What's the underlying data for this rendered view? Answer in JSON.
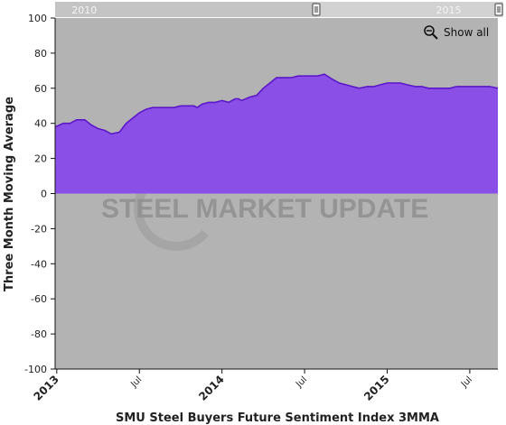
{
  "chart_data": {
    "type": "area",
    "title": "",
    "xlabel": "SMU Steel Buyers Future Sentiment Index 3MMA",
    "ylabel": "Three Month Moving Average",
    "ylim": [
      -100,
      100
    ],
    "yticks": [
      -100,
      -80,
      -60,
      -40,
      -20,
      0,
      20,
      40,
      60,
      80,
      100
    ],
    "grid": false,
    "legend": "none",
    "xticks": [
      {
        "x": 2013.0,
        "label": "2013",
        "major": true
      },
      {
        "x": 2013.5,
        "label": "Jul",
        "major": false
      },
      {
        "x": 2014.0,
        "label": "2014",
        "major": true
      },
      {
        "x": 2014.5,
        "label": "Jul",
        "major": false
      },
      {
        "x": 2015.0,
        "label": "2015",
        "major": true
      },
      {
        "x": 2015.5,
        "label": "Jul",
        "major": false
      }
    ],
    "xlim": [
      2012.99,
      2015.67
    ],
    "series": [
      {
        "color": "#8a4fe6",
        "line_color": "#5b17c9",
        "x": [
          2012.99,
          2013.04,
          2013.08,
          2013.12,
          2013.17,
          2013.21,
          2013.25,
          2013.29,
          2013.33,
          2013.38,
          2013.42,
          2013.46,
          2013.5,
          2013.54,
          2013.58,
          2013.62,
          2013.67,
          2013.71,
          2013.75,
          2013.79,
          2013.83,
          2013.85,
          2013.88,
          2013.92,
          2013.96,
          2014.0,
          2014.04,
          2014.08,
          2014.1,
          2014.12,
          2014.17,
          2014.21,
          2014.25,
          2014.29,
          2014.33,
          2014.38,
          2014.42,
          2014.46,
          2014.5,
          2014.54,
          2014.58,
          2014.62,
          2014.67,
          2014.71,
          2014.75,
          2014.79,
          2014.83,
          2014.88,
          2014.92,
          2014.96,
          2015.0,
          2015.04,
          2015.08,
          2015.12,
          2015.17,
          2015.21,
          2015.25,
          2015.29,
          2015.33,
          2015.38,
          2015.42,
          2015.46,
          2015.5,
          2015.54,
          2015.58,
          2015.62,
          2015.67
        ],
        "y": [
          38,
          40,
          40,
          42,
          42,
          39,
          37,
          36,
          34,
          35,
          40,
          43,
          46,
          48,
          49,
          49,
          49,
          49,
          50,
          50,
          50,
          49,
          51,
          52,
          52,
          53,
          52,
          54,
          54,
          53,
          55,
          56,
          60,
          63,
          66,
          66,
          66,
          67,
          67,
          67,
          67,
          68,
          65,
          63,
          62,
          61,
          60,
          61,
          61,
          62,
          63,
          63,
          63,
          62,
          61,
          61,
          60,
          60,
          60,
          60,
          61,
          61,
          61,
          61,
          61,
          61,
          60
        ]
      }
    ]
  },
  "navigator": {
    "labels": [
      {
        "x": 2010,
        "label": "2010"
      },
      {
        "x": 2015,
        "label": "2015"
      }
    ]
  },
  "controls": {
    "show_all_label": "Show all"
  },
  "watermark": {
    "text": "STEEL MARKET UPDATE"
  },
  "colors": {
    "plot_background": "#b3b3b3",
    "navigator_background": "#d2d2d2",
    "axis_line": "#111111"
  }
}
